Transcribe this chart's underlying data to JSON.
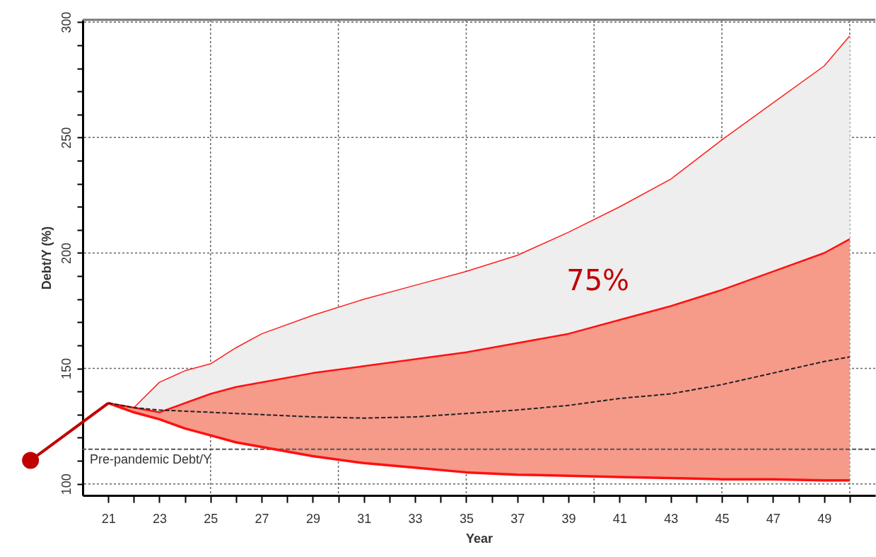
{
  "chart_data": {
    "type": "line",
    "xlabel": "Year",
    "ylabel": "Debt/Y (%)",
    "x": [
      21,
      22,
      23,
      24,
      25,
      26,
      27,
      29,
      31,
      33,
      35,
      37,
      39,
      41,
      43,
      45,
      47,
      49,
      50
    ],
    "series": [
      {
        "color": "#ff2020",
        "values": [
          135,
          133,
          144,
          149,
          152,
          159,
          165,
          173,
          180,
          186,
          192,
          199,
          209,
          220,
          232,
          249,
          265,
          281,
          294
        ],
        "lower": [
          135,
          133,
          131,
          135,
          139,
          142,
          144,
          148,
          151,
          154,
          157,
          161,
          165,
          171,
          177,
          184,
          192,
          200,
          206
        ],
        "upper": [
          135,
          133,
          144,
          149,
          152,
          159,
          165,
          173,
          180,
          186,
          192,
          199,
          209,
          220,
          232,
          249,
          265,
          281,
          294
        ]
      },
      {
        "color": "#ff1010",
        "values": [
          135,
          133,
          131,
          135,
          139,
          142,
          144,
          148,
          151,
          154,
          157,
          161,
          165,
          171,
          177,
          184,
          192,
          200,
          206
        ]
      },
      {
        "color": "#222222",
        "line_style": "dashed",
        "values": [
          135,
          133,
          132,
          131.5,
          131,
          130.5,
          130,
          129,
          128.5,
          129,
          130.5,
          132,
          134,
          137,
          139,
          143,
          148,
          153,
          155
        ],
        "lower": [
          135,
          131,
          128,
          124,
          121,
          118,
          116,
          112,
          109,
          107,
          105,
          104,
          103.5,
          103,
          102.5,
          102,
          102,
          101.5,
          101.5
        ],
        "upper": [
          135,
          133,
          131,
          135,
          139,
          142,
          144,
          148,
          151,
          154,
          157,
          161,
          165,
          171,
          177,
          184,
          192,
          200,
          206
        ]
      },
      {
        "color": "#ff1010",
        "values": [
          135,
          131,
          128,
          124,
          121,
          118,
          116,
          112,
          109,
          107,
          105,
          104,
          103.5,
          103,
          102.5,
          102,
          102,
          101.5,
          101.5
        ]
      }
    ],
    "xlim": [
      20,
      51
    ],
    "ylim": [
      95,
      301
    ],
    "xticks": [
      21,
      {
        "value": 22,
        "label": null
      },
      23,
      {
        "value": 24,
        "label": null
      },
      25,
      {
        "value": 26,
        "label": null
      },
      27,
      {
        "value": 28,
        "label": null
      },
      29,
      {
        "value": 30,
        "label": null
      },
      31,
      {
        "value": 32,
        "label": null
      },
      33,
      {
        "value": 34,
        "label": null
      },
      35,
      {
        "value": 36,
        "label": null
      },
      37,
      {
        "value": 38,
        "label": null
      },
      39,
      {
        "value": 40,
        "label": null
      },
      41,
      {
        "value": 42,
        "label": null
      },
      43,
      {
        "value": 44,
        "label": null
      },
      45,
      {
        "value": 46,
        "label": null
      },
      47,
      {
        "value": 48,
        "label": null
      },
      49,
      {
        "value": 50,
        "label": null
      }
    ],
    "yticks": [
      100,
      {
        "value": 110,
        "label": null
      },
      {
        "value": 120,
        "label": null
      },
      {
        "value": 130,
        "label": null
      },
      {
        "value": 140,
        "label": null
      },
      150,
      {
        "value": 160,
        "label": null
      },
      {
        "value": 170,
        "label": null
      },
      {
        "value": 180,
        "label": null
      },
      {
        "value": 190,
        "label": null
      },
      200,
      {
        "value": 210,
        "label": null
      },
      {
        "value": 220,
        "label": null
      },
      {
        "value": 230,
        "label": null
      },
      {
        "value": 240,
        "label": null
      },
      250,
      {
        "value": 260,
        "label": null
      },
      {
        "value": 270,
        "label": null
      },
      {
        "value": 280,
        "label": null
      },
      {
        "value": 290,
        "label": null
      },
      300
    ],
    "grid": true,
    "ref_lines": [
      {
        "axis": "y",
        "value": 115,
        "label": "Pre-pandemic Debt/Y",
        "color": "#555555",
        "line_style": "dashed"
      }
    ],
    "annotations": [
      "75%"
    ]
  }
}
